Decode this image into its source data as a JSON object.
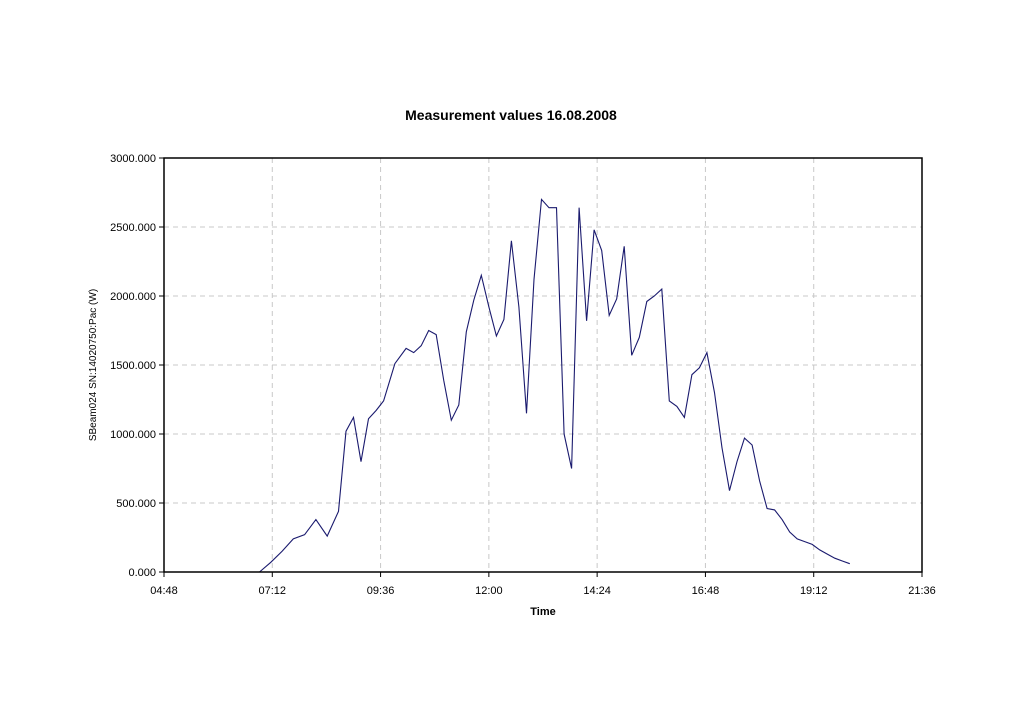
{
  "chart_data": {
    "type": "line",
    "title": "Measurement values 16.08.2008",
    "xlabel": "Time",
    "ylabel": "SBeam024 SN:14020750:Pac (W)",
    "xlim": [
      "04:48",
      "21:36"
    ],
    "ylim": [
      0,
      3000
    ],
    "grid": true,
    "x_ticks": [
      "04:48",
      "07:12",
      "09:36",
      "12:00",
      "14:24",
      "16:48",
      "19:12",
      "21:36"
    ],
    "y_ticks": [
      "0.000",
      "500.000",
      "1000.000",
      "1500.000",
      "2000.000",
      "2500.000",
      "3000.000"
    ],
    "series": [
      {
        "x": [
          "06:55",
          "07:10",
          "07:25",
          "07:40",
          "07:55",
          "08:10",
          "08:25",
          "08:40",
          "08:50",
          "09:00",
          "09:10",
          "09:20",
          "09:30",
          "09:40",
          "09:55",
          "10:10",
          "10:20",
          "10:30",
          "10:40",
          "10:50",
          "11:00",
          "11:10",
          "11:20",
          "11:30",
          "11:40",
          "11:50",
          "12:00",
          "12:10",
          "12:20",
          "12:30",
          "12:40",
          "12:50",
          "13:00",
          "13:10",
          "13:20",
          "13:30",
          "13:40",
          "13:50",
          "14:00",
          "14:10",
          "14:20",
          "14:30",
          "14:40",
          "14:50",
          "15:00",
          "15:10",
          "15:20",
          "15:30",
          "15:40",
          "15:50",
          "16:00",
          "16:10",
          "16:20",
          "16:30",
          "16:40",
          "16:50",
          "17:00",
          "17:10",
          "17:20",
          "17:30",
          "17:40",
          "17:50",
          "18:00",
          "18:10",
          "18:20",
          "18:30",
          "18:40",
          "18:50",
          "19:00",
          "19:10",
          "19:20",
          "19:30",
          "19:40",
          "19:50",
          "20:00"
        ],
        "values": [
          0,
          70,
          150,
          240,
          270,
          380,
          260,
          440,
          1020,
          1120,
          800,
          1110,
          1170,
          1240,
          1510,
          1620,
          1590,
          1640,
          1750,
          1720,
          1390,
          1100,
          1210,
          1740,
          1970,
          2150,
          1920,
          1710,
          1830,
          2400,
          1920,
          1150,
          2120,
          2700,
          2640,
          2640,
          1000,
          750,
          2640,
          1820,
          2480,
          2330,
          1860,
          1980,
          2360,
          1570,
          1700,
          1960,
          2000,
          2050,
          1240,
          1200,
          1120,
          1430,
          1480,
          1590,
          1300,
          900,
          590,
          800,
          970,
          920,
          660,
          460,
          450,
          380,
          290,
          240,
          220,
          200,
          160,
          130,
          100,
          80,
          60
        ]
      }
    ]
  }
}
